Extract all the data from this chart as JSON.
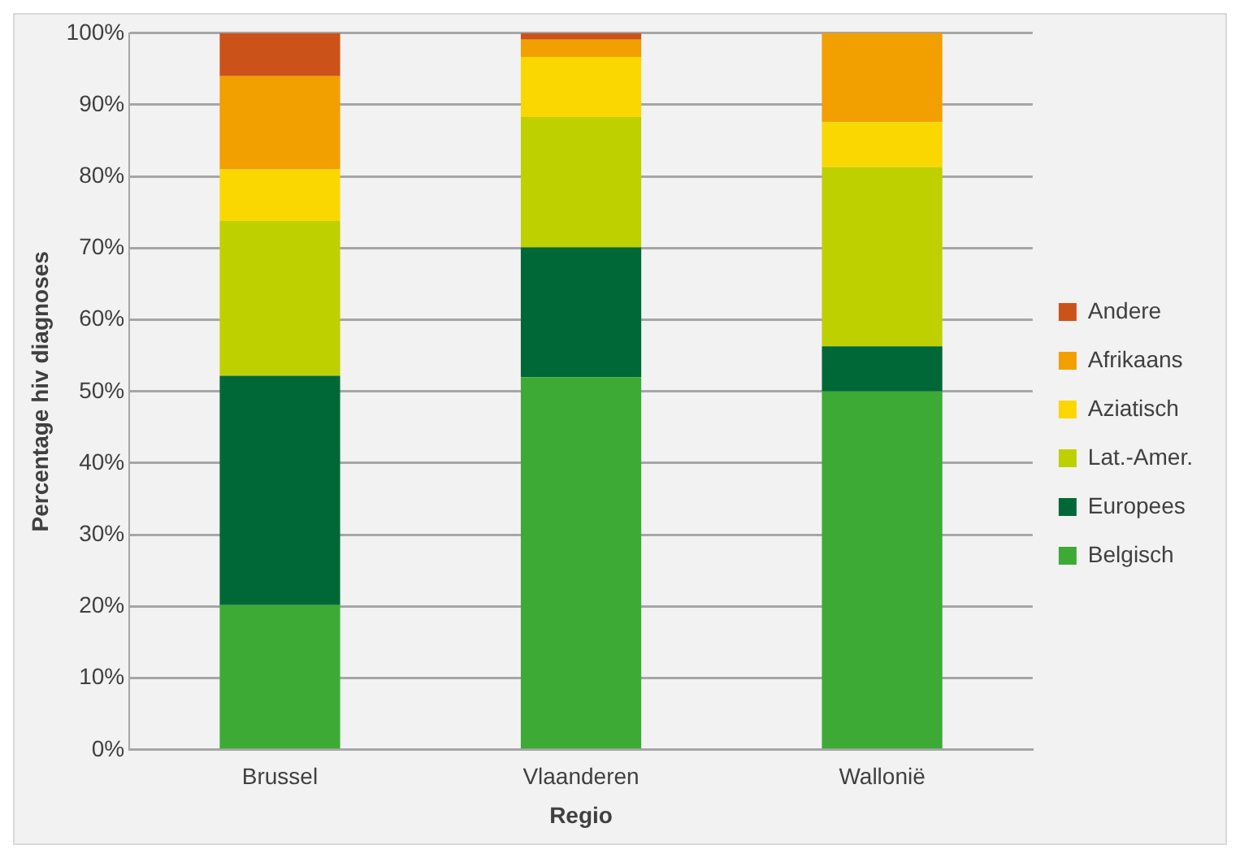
{
  "chart_data": {
    "type": "bar",
    "stacked": true,
    "xlabel": "Regio",
    "ylabel": "Percentage hiv diagnoses",
    "categories": [
      "Brussel",
      "Vlaanderen",
      "Wallonië"
    ],
    "series": [
      {
        "name": "Belgisch",
        "color": "#3daa35",
        "values": [
          20.2,
          52.0,
          50.0
        ]
      },
      {
        "name": "Europees",
        "color": "#006837",
        "values": [
          32.0,
          18.1,
          6.3
        ]
      },
      {
        "name": "Lat.-Amer.",
        "color": "#bed000",
        "values": [
          21.6,
          18.2,
          25.0
        ]
      },
      {
        "name": "Aziatisch",
        "color": "#fad700",
        "values": [
          7.2,
          8.4,
          6.3
        ]
      },
      {
        "name": "Afrikaans",
        "color": "#f29f00",
        "values": [
          13.0,
          2.4,
          12.5
        ]
      },
      {
        "name": "Andere",
        "color": "#cb5219",
        "values": [
          6.0,
          0.9,
          0
        ]
      }
    ],
    "ylim": [
      0,
      100
    ],
    "yticks": [
      {
        "value": 0,
        "label": "0%"
      },
      {
        "value": 10,
        "label": "10%"
      },
      {
        "value": 20,
        "label": "20%"
      },
      {
        "value": 30,
        "label": "30%"
      },
      {
        "value": 40,
        "label": "40%"
      },
      {
        "value": 50,
        "label": "50%"
      },
      {
        "value": 60,
        "label": "60%"
      },
      {
        "value": 70,
        "label": "70%"
      },
      {
        "value": 80,
        "label": "80%"
      },
      {
        "value": 90,
        "label": "90%"
      },
      {
        "value": 100,
        "label": "100%"
      }
    ],
    "grid": "y",
    "legend": "right"
  }
}
